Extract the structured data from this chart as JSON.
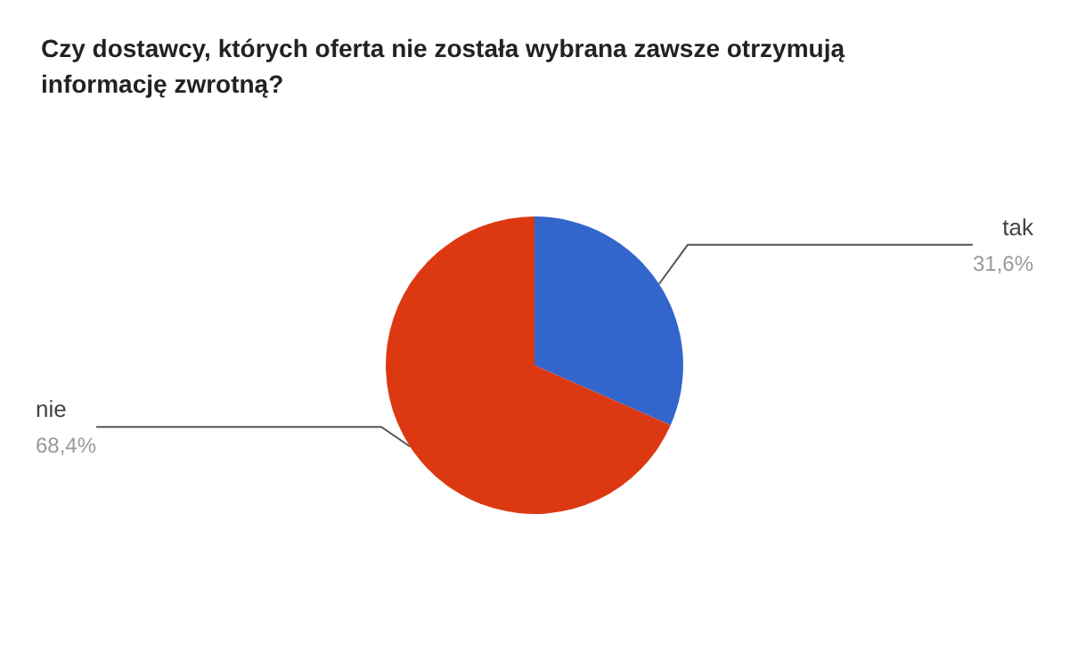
{
  "chart_data": {
    "type": "pie",
    "title": "Czy dostawcy, których oferta nie została wybrana zawsze otrzymują informację zwrotną?",
    "categories": [
      "tak",
      "nie"
    ],
    "values": [
      31.6,
      68.4
    ],
    "colors": [
      "#3366cc",
      "#dc3912"
    ],
    "value_labels": [
      "31,6%",
      "68,4%"
    ],
    "legend": false
  }
}
